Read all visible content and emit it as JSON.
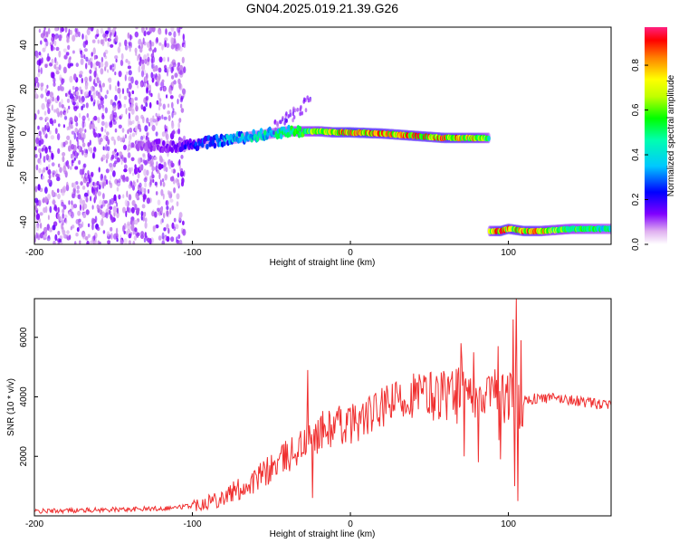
{
  "title": "GN04.2025.019.21.39.G26",
  "chart_data": [
    {
      "type": "heatmap",
      "xlabel": "Height of straight line (km)",
      "ylabel": "Frequency (Hz)",
      "xlim": [
        -200,
        165
      ],
      "ylim": [
        -50,
        48
      ],
      "xticks": [
        "-200",
        "-100",
        "0",
        "100"
      ],
      "yticks": [
        "40",
        "20",
        "0",
        "-20",
        "-40"
      ],
      "colorbar": {
        "label": "Normalized spectral amplitude",
        "range": [
          0,
          0.97
        ],
        "ticks": [
          "0.0",
          "0.2",
          "0.4",
          "0.6",
          "0.8"
        ],
        "colors": [
          "#ffffff",
          "#c070e0",
          "#6000ff",
          "#0000ff",
          "#00c8ff",
          "#00ff80",
          "#c0ff00",
          "#ffff00",
          "#ff8000",
          "#ff0000",
          "#ff2080"
        ]
      },
      "tracks": [
        {
          "name": "main",
          "x": [
            -135,
            -110,
            -100,
            -90,
            -80,
            -70,
            -60,
            -50,
            -40,
            -30,
            -20,
            -10,
            0,
            20,
            40,
            60,
            80,
            88
          ],
          "y": [
            -5,
            -6,
            -5,
            -4,
            -3,
            -2,
            -1,
            0,
            1,
            1,
            1,
            0.5,
            0.5,
            0,
            -1,
            -2,
            -2,
            -2
          ],
          "amp": [
            0.15,
            0.2,
            0.3,
            0.35,
            0.4,
            0.45,
            0.5,
            0.5,
            0.55,
            0.65,
            0.75,
            0.85,
            0.9,
            0.85,
            0.85,
            0.85,
            0.8,
            0.6
          ]
        },
        {
          "name": "lower",
          "x": [
            88,
            95,
            100,
            110,
            120,
            130,
            140,
            150,
            165
          ],
          "y": [
            -44,
            -44,
            -43,
            -44,
            -44,
            -43.5,
            -43,
            -43,
            -43
          ],
          "amp": [
            0.7,
            0.9,
            0.8,
            0.85,
            0.8,
            0.7,
            0.65,
            0.6,
            0.55
          ]
        }
      ]
    },
    {
      "type": "line",
      "xlabel": "Height of straight line (km)",
      "ylabel": "SNR (10 * v/v)",
      "xlim": [
        -200,
        165
      ],
      "ylim": [
        0,
        7300
      ],
      "xticks": [
        "-200",
        "-100",
        "0",
        "100"
      ],
      "yticks": [
        "6000",
        "4000",
        "2000"
      ],
      "color": "#f03030",
      "x": [
        -200,
        -180,
        -160,
        -140,
        -120,
        -110,
        -100,
        -90,
        -80,
        -70,
        -60,
        -50,
        -40,
        -30,
        -25,
        -20,
        -10,
        0,
        10,
        20,
        30,
        40,
        50,
        60,
        70,
        80,
        90,
        100,
        110,
        120,
        130,
        140,
        150,
        165
      ],
      "y": [
        150,
        180,
        200,
        220,
        250,
        280,
        350,
        500,
        650,
        900,
        1200,
        1600,
        2000,
        2400,
        2600,
        2800,
        3000,
        3100,
        3300,
        3600,
        3900,
        4000,
        4050,
        4100,
        4150,
        4200,
        4050,
        3950,
        3900,
        3950,
        3950,
        3900,
        3800,
        3700
      ],
      "spikes": [
        {
          "x": -27,
          "y": 4900
        },
        {
          "x": -24,
          "y": 600
        },
        {
          "x": 70,
          "y": 5800
        },
        {
          "x": 72,
          "y": 2000
        },
        {
          "x": 78,
          "y": 5500
        },
        {
          "x": 81,
          "y": 1800
        },
        {
          "x": 95,
          "y": 1900
        },
        {
          "x": 103,
          "y": 6600
        },
        {
          "x": 104,
          "y": 1000
        },
        {
          "x": 105,
          "y": 7300
        },
        {
          "x": 106,
          "y": 500
        },
        {
          "x": 108,
          "y": 5900
        }
      ]
    }
  ]
}
